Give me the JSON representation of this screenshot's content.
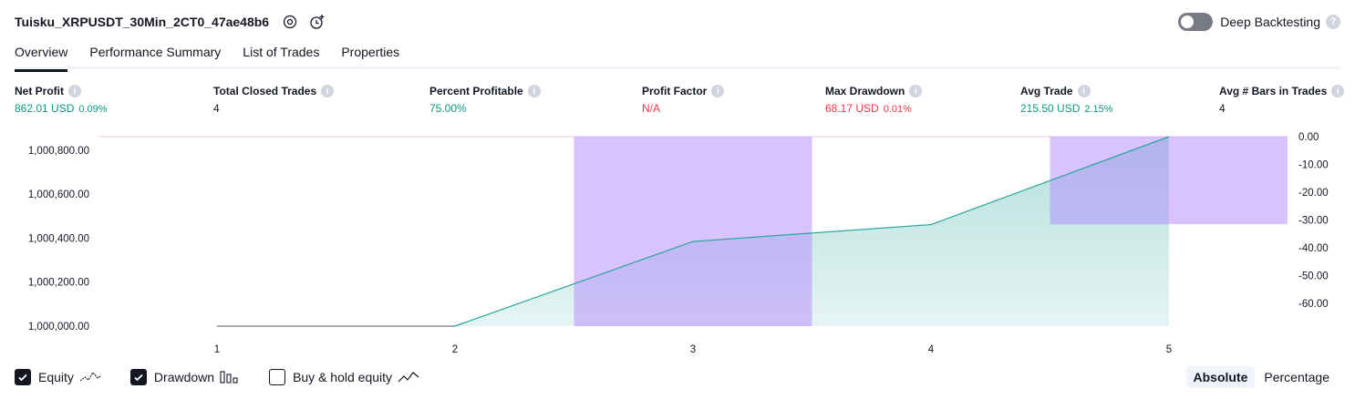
{
  "header": {
    "title": "Tuisku_XRPUSDT_30Min_2CT0_47ae48b6",
    "settings_icon": "gear-icon",
    "alert_icon": "add-alert-icon"
  },
  "deep_backtesting": {
    "label": "Deep Backtesting",
    "enabled": false
  },
  "tabs": [
    "Overview",
    "Performance Summary",
    "List of Trades",
    "Properties"
  ],
  "active_tab": "Overview",
  "stats": [
    {
      "label": "Net Profit",
      "value": "862.01 USD",
      "pct": "0.09%",
      "color": "green"
    },
    {
      "label": "Total Closed Trades",
      "value": "4",
      "pct": "",
      "color": "dark"
    },
    {
      "label": "Percent Profitable",
      "value": "75.00%",
      "pct": "",
      "color": "green"
    },
    {
      "label": "Profit Factor",
      "value": "N/A",
      "pct": "",
      "color": "red"
    },
    {
      "label": "Max Drawdown",
      "value": "68.17 USD",
      "pct": "0.01%",
      "color": "red"
    },
    {
      "label": "Avg Trade",
      "value": "215.50 USD",
      "pct": "2.15%",
      "color": "green"
    },
    {
      "label": "Avg # Bars in Trades",
      "value": "4",
      "pct": "",
      "color": "dark"
    }
  ],
  "chart_data": {
    "type": "area",
    "x": [
      1,
      2,
      3,
      4,
      5
    ],
    "series": [
      {
        "name": "Equity",
        "values": [
          1000000,
          1000000,
          1000385,
          1000462,
          1000862
        ],
        "axis": "left",
        "color": "#26a69a"
      },
      {
        "name": "Drawdown",
        "type": "bar",
        "values": [
          0,
          0,
          -68.17,
          0,
          -31.5
        ],
        "axis": "right",
        "color": "#b388ff"
      }
    ],
    "left_ticks": [
      "1,000,800.00",
      "1,000,600.00",
      "1,000,400.00",
      "1,000,200.00",
      "1,000,000.00"
    ],
    "left_tick_values": [
      1000800,
      1000600,
      1000400,
      1000200,
      1000000
    ],
    "right_ticks": [
      "0.00",
      "-10.00",
      "-20.00",
      "-30.00",
      "-40.00",
      "-50.00",
      "-60.00"
    ],
    "right_tick_values": [
      0,
      -10,
      -20,
      -30,
      -40,
      -50,
      -60
    ],
    "x_ticks": [
      "1",
      "2",
      "3",
      "4",
      "5"
    ],
    "ylim_left": [
      1000000,
      1000862
    ],
    "ylim_right": [
      -68.17,
      0
    ],
    "grid": false
  },
  "legend": [
    {
      "label": "Equity",
      "checked": true,
      "icon": "equity-line-icon"
    },
    {
      "label": "Drawdown",
      "checked": true,
      "icon": "drawdown-bars-icon"
    },
    {
      "label": "Buy & hold equity",
      "checked": false,
      "icon": "buy-hold-line-icon"
    }
  ],
  "mode": {
    "options": [
      "Absolute",
      "Percentage"
    ],
    "selected": "Absolute"
  }
}
